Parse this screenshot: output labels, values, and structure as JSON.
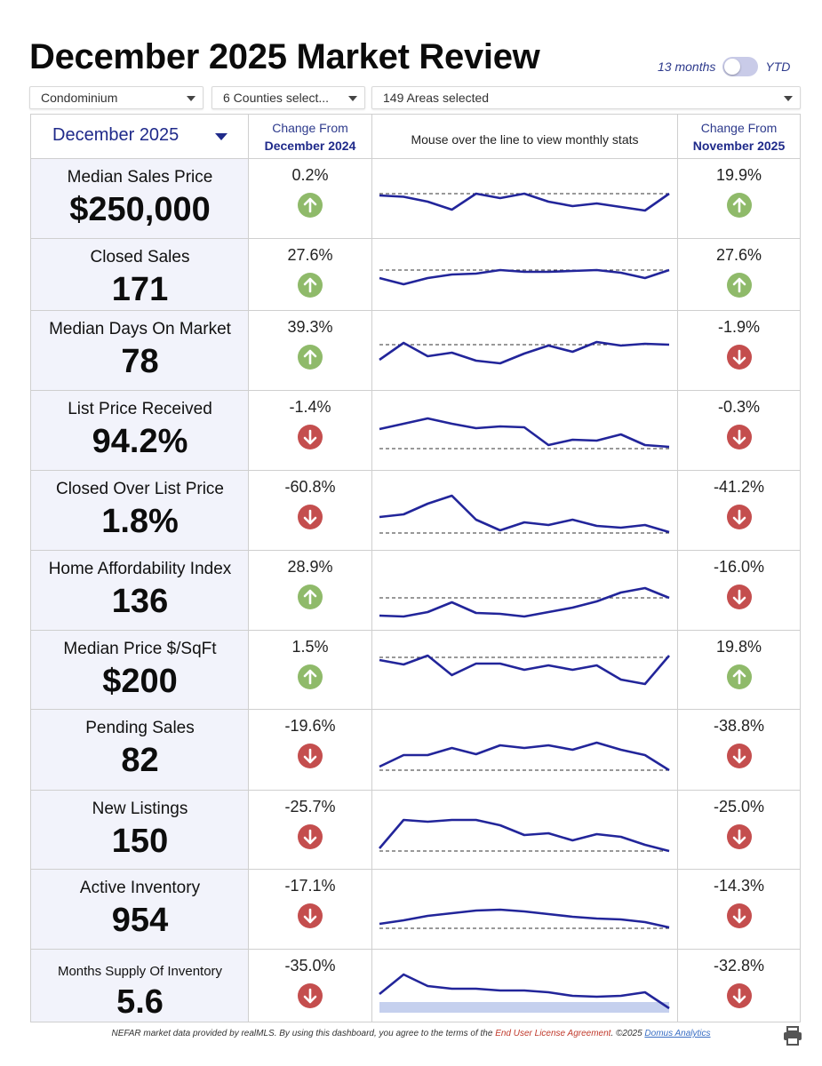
{
  "title": "December 2025 Market Review",
  "toggle": {
    "left_label": "13 months",
    "right_label": "YTD"
  },
  "filters": {
    "property_type": "Condominium",
    "counties": "6 Counties select...",
    "areas": "149 Areas selected"
  },
  "header": {
    "month": "December 2025",
    "change_prev_year_top": "Change From",
    "change_prev_year_bottom": "December 2024",
    "hint": "Mouse over the line to view monthly stats",
    "change_prev_month_top": "Change From",
    "change_prev_month_bottom": "November 2025"
  },
  "colors": {
    "line": "#22259a",
    "up": "#8fba6a",
    "down": "#c44e4e",
    "band": "#c5d0ee"
  },
  "metrics": [
    {
      "label": "Median Sales Price",
      "value": "$250,000",
      "yoy": "0.2%",
      "yoy_dir": "up",
      "mom": "19.9%",
      "mom_dir": "up",
      "series": [
        13,
        14.5,
        20,
        29,
        11,
        16,
        11,
        20,
        25,
        22,
        26,
        30,
        11
      ],
      "ref": 11
    },
    {
      "label": "Closed Sales",
      "value": "171",
      "yoy": "27.6%",
      "yoy_dir": "up",
      "mom": "27.6%",
      "mom_dir": "up",
      "series": [
        16,
        23,
        16,
        12,
        11,
        7,
        9,
        9,
        8,
        7,
        10,
        16,
        7
      ],
      "ref": 7
    },
    {
      "label": "Median Days On Market",
      "value": "78",
      "yoy": "39.3%",
      "yoy_dir": "up",
      "mom": "-1.9%",
      "mom_dir": "down",
      "series": [
        27,
        8,
        23,
        19,
        28,
        31,
        20,
        11,
        18,
        7,
        11,
        9,
        10
      ],
      "ref": 10
    },
    {
      "label": "List Price Received",
      "value": "94.2%",
      "yoy": "-1.4%",
      "yoy_dir": "down",
      "mom": "-0.3%",
      "mom_dir": "down",
      "series": [
        15,
        9,
        3,
        9,
        14,
        12,
        13,
        33,
        27,
        28,
        21,
        33,
        35
      ],
      "ref": 37
    },
    {
      "label": "Closed Over List Price",
      "value": "1.8%",
      "yoy": "-60.8%",
      "yoy_dir": "down",
      "mom": "-41.2%",
      "mom_dir": "down",
      "series": [
        24,
        21,
        9,
        0,
        27,
        39,
        30,
        33,
        27,
        34,
        36,
        33,
        41
      ],
      "ref": 42
    },
    {
      "label": "Home Affordability Index",
      "value": "136",
      "yoy": "28.9%",
      "yoy_dir": "up",
      "mom": "-16.0%",
      "mom_dir": "down",
      "series": [
        45,
        46,
        41,
        30,
        42,
        43,
        46,
        41,
        36,
        29,
        19,
        14,
        25
      ],
      "ref": 25
    },
    {
      "label": "Median Price $/SqFt",
      "value": "$200",
      "yoy": "1.5%",
      "yoy_dir": "up",
      "mom": "19.8%",
      "mom_dir": "up",
      "series": [
        5,
        10,
        0,
        22,
        9,
        9,
        16,
        11,
        16,
        11,
        27,
        32,
        0
      ],
      "ref": 2
    },
    {
      "label": "Pending Sales",
      "value": "82",
      "yoy": "-19.6%",
      "yoy_dir": "down",
      "mom": "-38.8%",
      "mom_dir": "down",
      "series": [
        36,
        23,
        23,
        15,
        22,
        12,
        15,
        12,
        17,
        9,
        17,
        23,
        40
      ],
      "ref": 40
    },
    {
      "label": "New Listings",
      "value": "150",
      "yoy": "-25.7%",
      "yoy_dir": "down",
      "mom": "-25.0%",
      "mom_dir": "down",
      "series": [
        37,
        5,
        7,
        5,
        5,
        11,
        22,
        20,
        28,
        21,
        24,
        33,
        40
      ],
      "ref": 40
    },
    {
      "label": "Active Inventory",
      "value": "954",
      "yoy": "-17.1%",
      "yoy_dir": "down",
      "mom": "-14.3%",
      "mom_dir": "down",
      "series": [
        33,
        29,
        24,
        21,
        18,
        17,
        19,
        22,
        25,
        27,
        28,
        31,
        37
      ],
      "ref": 38
    },
    {
      "label": "Months Supply Of Inventory",
      "value": "5.6",
      "yoy": "-35.0%",
      "yoy_dir": "down",
      "mom": "-32.8%",
      "mom_dir": "down",
      "series": [
        22,
        0,
        13,
        16,
        16,
        18,
        18,
        20,
        24,
        25,
        24,
        20,
        38
      ],
      "ref": null
    }
  ],
  "footer": {
    "text1": "NEFAR market data provided by realMLS.  By using this dashboard, you agree to the terms of the ",
    "eula": "End User License Agreement",
    "text2": ".  ©2025 ",
    "domus": "Domus Analytics"
  }
}
